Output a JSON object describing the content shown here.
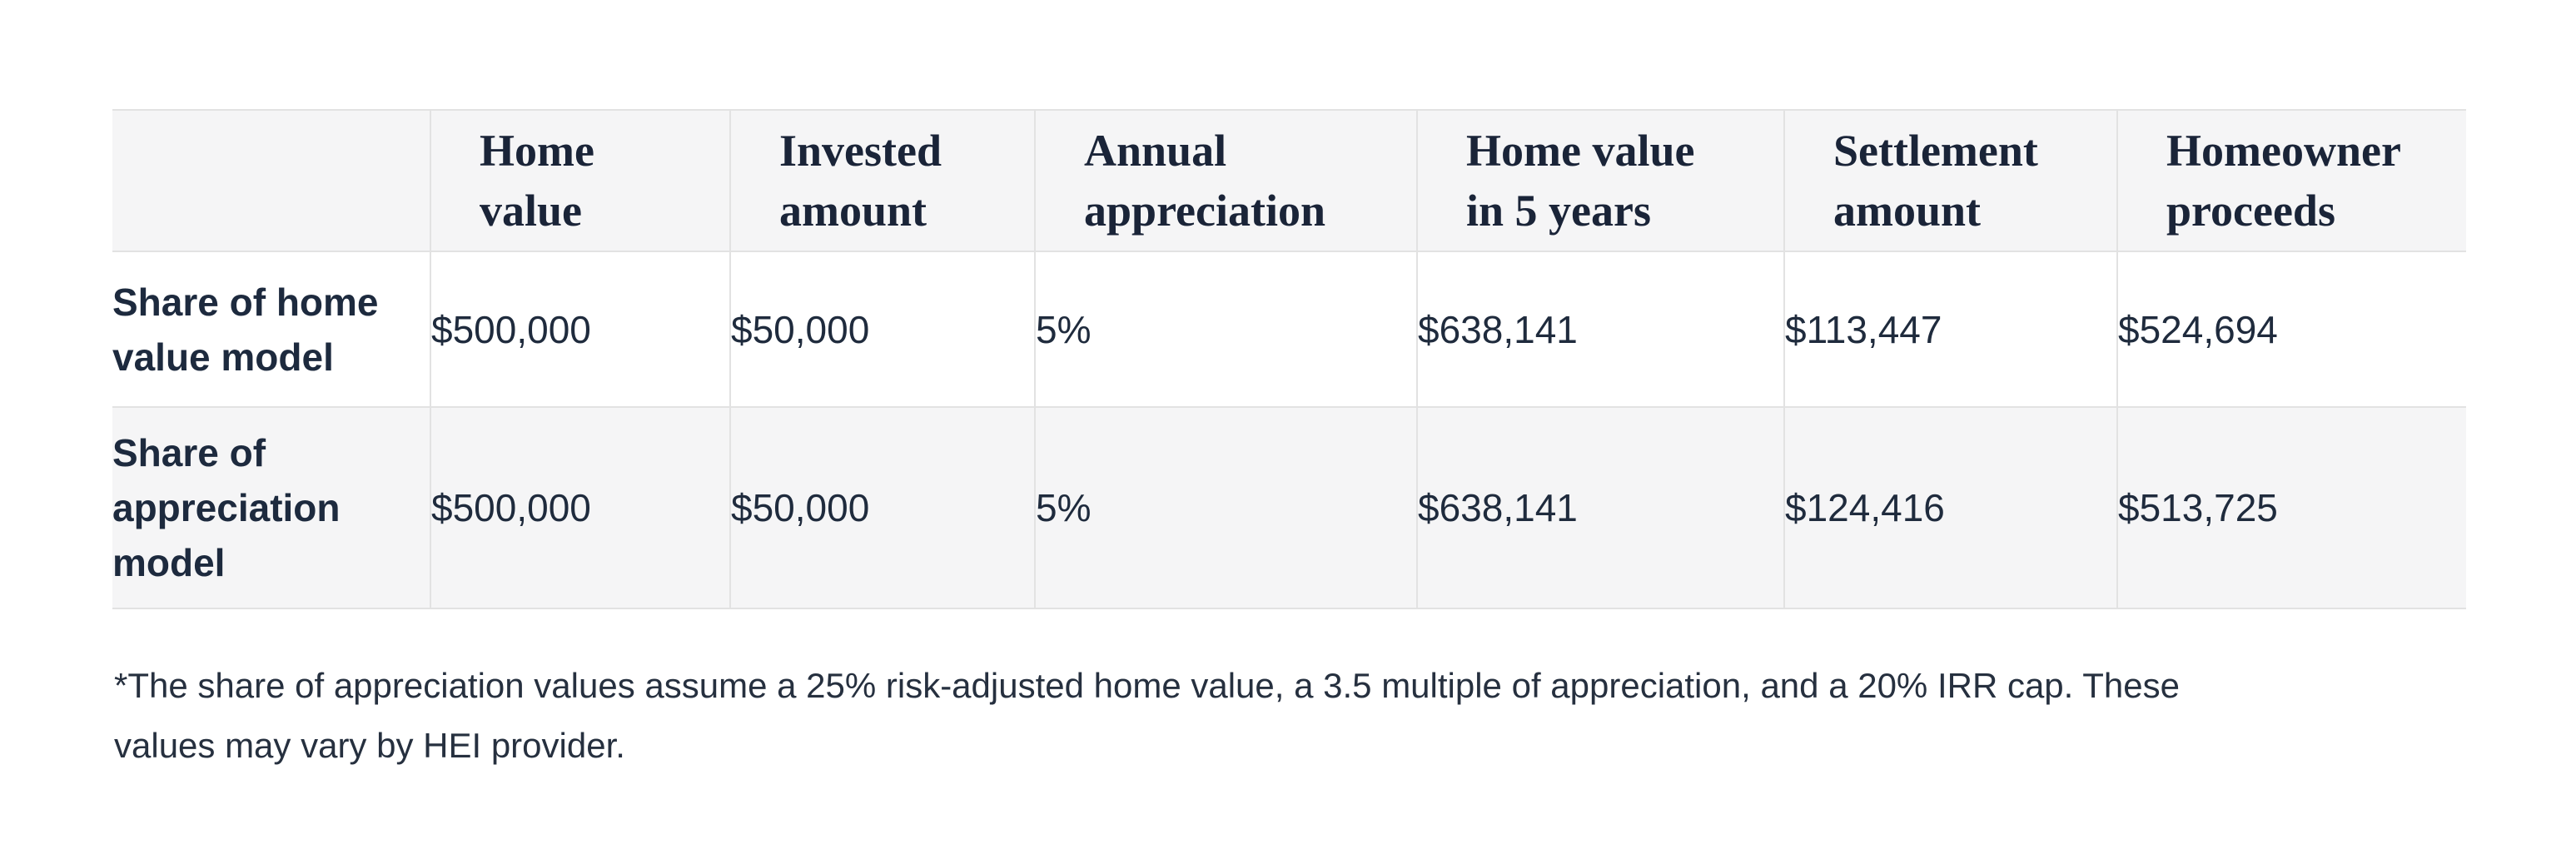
{
  "colors": {
    "text_primary": "#26303f",
    "heading": "#1a2438",
    "value_text": "#1f2b3d",
    "table_stripe_bg": "#f5f5f6",
    "table_border": "#e2e2e2",
    "page_bg": "#ffffff"
  },
  "table": {
    "headers": [
      {
        "label": "Home value",
        "lines": [
          "Home",
          "value"
        ]
      },
      {
        "label": "Invested amount",
        "lines": [
          "Invested",
          "amount"
        ]
      },
      {
        "label": "Annual appreciation",
        "lines": [
          "Annual",
          "appreciation"
        ]
      },
      {
        "label": "Home value in 5 years",
        "lines": [
          "Home value",
          "in 5 years"
        ]
      },
      {
        "label": "Settlement amount",
        "lines": [
          "Settlement",
          "amount"
        ]
      },
      {
        "label": "Homeowner proceeds",
        "lines": [
          "Homeowner",
          "proceeds"
        ]
      }
    ],
    "rows": [
      {
        "label": "Share of home value model",
        "label_lines": [
          "Share of home",
          "value model"
        ],
        "values": [
          "$500,000",
          "$50,000",
          "5%",
          "$638,141",
          "$113,447",
          "$524,694"
        ]
      },
      {
        "label": "Share of appreciation model",
        "label_lines": [
          "Share of",
          "appreciation",
          "model"
        ],
        "values": [
          "$500,000",
          "$50,000",
          "5%",
          "$638,141",
          "$124,416",
          "$513,725"
        ]
      }
    ]
  },
  "footnote": {
    "text": "*The share of appreciation values assume a 25% risk-adjusted home value, a 3.5 multiple of appreciation, and a 20% IRR cap. These values may vary by HEI provider.",
    "lines": [
      "*The share of appreciation values assume a 25% risk-adjusted home value, a 3.5 multiple of appreciation, and a 20% IRR cap. These",
      "values may vary by HEI provider."
    ]
  }
}
